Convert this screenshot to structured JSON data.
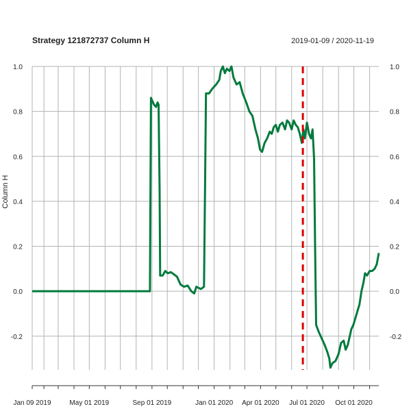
{
  "chart_data": {
    "type": "line",
    "title": "Strategy 121872737 Column H",
    "date_range": "2019-01-09 / 2020-11-19",
    "ylabel": "Column H",
    "xlabel": "",
    "ylim": [
      -0.35,
      1.0
    ],
    "xlim": [
      "2019-01-09",
      "2020-11-19"
    ],
    "grid": true,
    "y_ticks": [
      -0.2,
      0.0,
      0.2,
      0.4,
      0.6,
      0.8,
      1.0
    ],
    "y_tick_labels": [
      "-0.2",
      "0.0",
      "0.2",
      "0.4",
      "0.6",
      "0.8",
      "1.0"
    ],
    "x_tick_labels": [
      {
        "date": "2019-01-09",
        "label": "Jan 09 2019"
      },
      {
        "date": "2019-05-01",
        "label": "May 01 2019"
      },
      {
        "date": "2019-09-01",
        "label": "Sep 01 2019"
      },
      {
        "date": "2020-01-01",
        "label": "Jan 01 2020"
      },
      {
        "date": "2020-04-01",
        "label": "Apr 01 2020"
      },
      {
        "date": "2020-07-01",
        "label": "Jul 01 2020"
      },
      {
        "date": "2020-10-01",
        "label": "Oct 01 2020"
      }
    ],
    "vline": {
      "date": "2020-06-23",
      "color": "#dd0000",
      "style": "dashed"
    },
    "series": [
      {
        "color": "#007a3d",
        "points": [
          [
            "2019-01-09",
            0.0
          ],
          [
            "2019-04-01",
            0.0
          ],
          [
            "2019-08-28",
            0.0
          ],
          [
            "2019-08-29",
            0.42
          ],
          [
            "2019-08-30",
            0.86
          ],
          [
            "2019-09-05",
            0.83
          ],
          [
            "2019-09-09",
            0.82
          ],
          [
            "2019-09-12",
            0.84
          ],
          [
            "2019-09-14",
            0.83
          ],
          [
            "2019-09-16",
            0.45
          ],
          [
            "2019-09-17",
            0.07
          ],
          [
            "2019-09-22",
            0.07
          ],
          [
            "2019-09-27",
            0.09
          ],
          [
            "2019-10-02",
            0.08
          ],
          [
            "2019-10-08",
            0.085
          ],
          [
            "2019-10-14",
            0.075
          ],
          [
            "2019-10-20",
            0.065
          ],
          [
            "2019-10-27",
            0.03
          ],
          [
            "2019-11-03",
            0.02
          ],
          [
            "2019-11-10",
            0.025
          ],
          [
            "2019-11-17",
            0.0
          ],
          [
            "2019-11-23",
            -0.01
          ],
          [
            "2019-11-27",
            0.02
          ],
          [
            "2019-12-01",
            0.015
          ],
          [
            "2019-12-06",
            0.01
          ],
          [
            "2019-12-12",
            0.02
          ],
          [
            "2019-12-14",
            0.45
          ],
          [
            "2019-12-16",
            0.88
          ],
          [
            "2019-12-22",
            0.88
          ],
          [
            "2019-12-28",
            0.9
          ],
          [
            "2020-01-05",
            0.92
          ],
          [
            "2020-01-11",
            0.94
          ],
          [
            "2020-01-14",
            0.98
          ],
          [
            "2020-01-18",
            1.0
          ],
          [
            "2020-01-22",
            0.97
          ],
          [
            "2020-01-26",
            0.99
          ],
          [
            "2020-01-31",
            0.98
          ],
          [
            "2020-02-04",
            1.0
          ],
          [
            "2020-02-08",
            0.95
          ],
          [
            "2020-02-14",
            0.92
          ],
          [
            "2020-02-20",
            0.93
          ],
          [
            "2020-02-26",
            0.88
          ],
          [
            "2020-03-04",
            0.84
          ],
          [
            "2020-03-10",
            0.8
          ],
          [
            "2020-03-16",
            0.78
          ],
          [
            "2020-03-22",
            0.72
          ],
          [
            "2020-03-27",
            0.68
          ],
          [
            "2020-03-31",
            0.63
          ],
          [
            "2020-04-04",
            0.62
          ],
          [
            "2020-04-09",
            0.66
          ],
          [
            "2020-04-14",
            0.68
          ],
          [
            "2020-04-19",
            0.71
          ],
          [
            "2020-04-23",
            0.7
          ],
          [
            "2020-04-27",
            0.73
          ],
          [
            "2020-05-01",
            0.74
          ],
          [
            "2020-05-05",
            0.71
          ],
          [
            "2020-05-09",
            0.74
          ],
          [
            "2020-05-14",
            0.75
          ],
          [
            "2020-05-19",
            0.72
          ],
          [
            "2020-05-23",
            0.76
          ],
          [
            "2020-05-27",
            0.75
          ],
          [
            "2020-06-01",
            0.72
          ],
          [
            "2020-06-05",
            0.76
          ],
          [
            "2020-06-09",
            0.74
          ],
          [
            "2020-06-13",
            0.73
          ],
          [
            "2020-06-17",
            0.7
          ],
          [
            "2020-06-21",
            0.66
          ],
          [
            "2020-06-24",
            0.72
          ],
          [
            "2020-06-27",
            0.68
          ],
          [
            "2020-07-01",
            0.75
          ],
          [
            "2020-07-05",
            0.7
          ],
          [
            "2020-07-09",
            0.68
          ],
          [
            "2020-07-12",
            0.72
          ],
          [
            "2020-07-15",
            0.59
          ],
          [
            "2020-07-17",
            0.2
          ],
          [
            "2020-07-19",
            -0.15
          ],
          [
            "2020-07-24",
            -0.18
          ],
          [
            "2020-07-30",
            -0.21
          ],
          [
            "2020-08-05",
            -0.24
          ],
          [
            "2020-08-10",
            -0.27
          ],
          [
            "2020-08-14",
            -0.3
          ],
          [
            "2020-08-16",
            -0.34
          ],
          [
            "2020-08-20",
            -0.32
          ],
          [
            "2020-08-26",
            -0.31
          ],
          [
            "2020-09-01",
            -0.28
          ],
          [
            "2020-09-06",
            -0.23
          ],
          [
            "2020-09-11",
            -0.22
          ],
          [
            "2020-09-15",
            -0.26
          ],
          [
            "2020-09-19",
            -0.24
          ],
          [
            "2020-09-23",
            -0.2
          ],
          [
            "2020-09-26",
            -0.17
          ],
          [
            "2020-09-30",
            -0.15
          ],
          [
            "2020-10-04",
            -0.12
          ],
          [
            "2020-10-08",
            -0.09
          ],
          [
            "2020-10-12",
            -0.06
          ],
          [
            "2020-10-16",
            0.0
          ],
          [
            "2020-10-20",
            0.04
          ],
          [
            "2020-10-23",
            0.08
          ],
          [
            "2020-10-27",
            0.07
          ],
          [
            "2020-11-01",
            0.09
          ],
          [
            "2020-11-06",
            0.09
          ],
          [
            "2020-11-11",
            0.1
          ],
          [
            "2020-11-15",
            0.12
          ],
          [
            "2020-11-19",
            0.17
          ]
        ]
      }
    ]
  }
}
